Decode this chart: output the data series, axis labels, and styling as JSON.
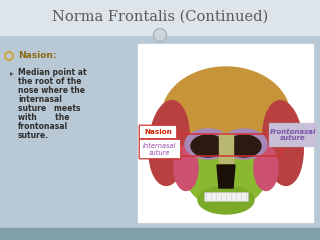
{
  "title": "Norma Frontalis (Continued)",
  "title_color": "#5a5a5a",
  "title_fontsize": 10.5,
  "bg_color": "#b8c8d4",
  "top_bar_color": "#dde4ea",
  "bullet_header": "Nasion:",
  "bullet_header_color": "#8B6914",
  "bullet_color": "#2f2f2f",
  "label_nasion": "Nasion",
  "label_internasal": "Internasal\nsuture",
  "label_frontonasal": "Frontonasal\nsuture",
  "nasion_box_edge": "#cc3333",
  "nasion_text_color": "#cc2200",
  "internasal_box_edge": "#cc3333",
  "internasal_text_color": "#9944aa",
  "frontonasal_box_bg": "#c8c0d8",
  "frontonasal_text_color": "#7755aa",
  "circle_color": "#cdd6de",
  "circle_outline": "#aab4bc",
  "bottom_bar_color": "#7fa0a8",
  "white_panel": "#ffffff",
  "skull_cranium": "#c8943a",
  "skull_temporal_l": "#b84040",
  "skull_temporal_r": "#b84040",
  "skull_face": "#8ab830",
  "skull_orbit_bg": "#a888b8",
  "skull_orbit_dark": "#2a1a10",
  "skull_nose_dark": "#1a1008",
  "skull_teeth": "#f0f0f0",
  "skull_nasal": "#b8b870",
  "skull_cheek_l": "#cc5070",
  "skull_cheek_r": "#cc5070",
  "skull_mandible": "#7aaa28"
}
